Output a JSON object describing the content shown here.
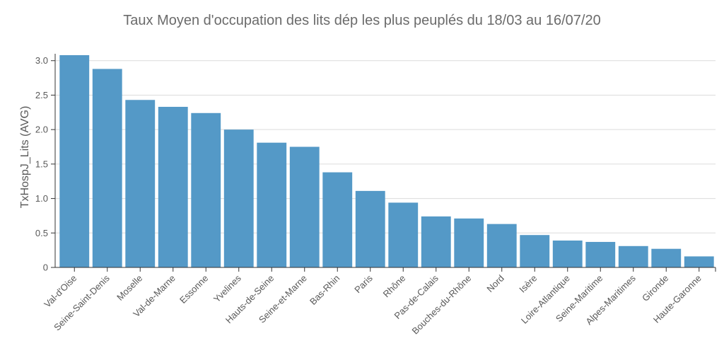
{
  "chart_data": {
    "type": "bar",
    "title": "Taux Moyen d'occupation des lits dép les plus peuplés du 18/03 au 16/07/20",
    "xlabel": "",
    "ylabel": "TxHospJ_Lits (AVG)",
    "ylim": [
      0,
      3.1
    ],
    "yticks": [
      "0",
      "0.5",
      "1.0",
      "1.5",
      "2.0",
      "2.5",
      "3.0"
    ],
    "grid": true,
    "bar_color": "#5499c7",
    "categories": [
      "Val-d'Oise",
      "Seine-Saint-Denis",
      "Moselle",
      "Val-de-Marne",
      "Essonne",
      "Yvelines",
      "Hauts-de-Seine",
      "Seine-et-Marne",
      "Bas-Rhin",
      "Paris",
      "Rhône",
      "Pas-de-Calais",
      "Bouches-du-Rhône",
      "Nord",
      "Isère",
      "Loire-Atlantique",
      "Seine-Maritime",
      "Alpes-Maritimes",
      "Gironde",
      "Haute-Garonne"
    ],
    "values": [
      3.08,
      2.88,
      2.43,
      2.33,
      2.24,
      2.0,
      1.81,
      1.75,
      1.38,
      1.11,
      0.94,
      0.74,
      0.71,
      0.63,
      0.47,
      0.39,
      0.37,
      0.31,
      0.27,
      0.16
    ]
  }
}
